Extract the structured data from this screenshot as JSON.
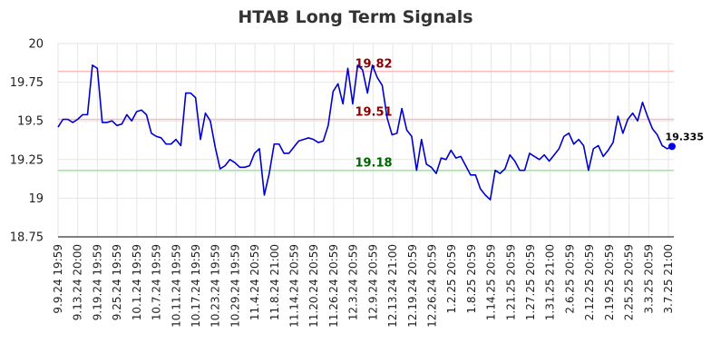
{
  "chart_data": {
    "type": "line",
    "title": "HTAB Long Term Signals",
    "ylim": [
      18.75,
      20
    ],
    "yticks": [
      18.75,
      19,
      19.25,
      19.5,
      19.75,
      20
    ],
    "ytick_labels": [
      "18.75",
      "19",
      "19.25",
      "19.5",
      "19.75",
      "20"
    ],
    "xtick_labels": [
      "9.9.24 19:59",
      "9.13.24 20:00",
      "9.19.24 19:59",
      "9.25.24 19:59",
      "10.1.24 19:59",
      "10.7.24 19:59",
      "10.11.24 19:59",
      "10.17.24 19:59",
      "10.23.24 19:59",
      "10.29.24 19:59",
      "11.4.24 20:59",
      "11.8.24 21:00",
      "11.14.24 20:59",
      "11.20.24 20:59",
      "11.26.24 20:59",
      "12.3.24 20:59",
      "12.9.24 20:59",
      "12.13.24 21:00",
      "12.19.24 20:59",
      "12.26.24 20:59",
      "1.2.25 20:59",
      "1.8.25 20:59",
      "1.14.25 20:59",
      "1.21.25 20:59",
      "1.27.25 20:59",
      "1.31.25 21:00",
      "2.6.25 20:59",
      "2.12.25 20:59",
      "2.19.25 20:59",
      "2.25.25 20:59",
      "3.3.25 20:59",
      "3.7.25 21:00"
    ],
    "grid": true,
    "line_color": "#0000cc",
    "series": [
      {
        "values": [
          19.46,
          19.51,
          19.51,
          19.49,
          19.51,
          19.54,
          19.54,
          19.86,
          19.84,
          19.49,
          19.49,
          19.5,
          19.47,
          19.48,
          19.54,
          19.5,
          19.56,
          19.57,
          19.54,
          19.42,
          19.4,
          19.39,
          19.35,
          19.35,
          19.38,
          19.34,
          19.68,
          19.68,
          19.65,
          19.38,
          19.55,
          19.5,
          19.33,
          19.19,
          19.21,
          19.25,
          19.23,
          19.2,
          19.2,
          19.21,
          19.29,
          19.32,
          19.02,
          19.16,
          19.35,
          19.35,
          19.29,
          19.29,
          19.33,
          19.37,
          19.38,
          19.39,
          19.38,
          19.36,
          19.37,
          19.47,
          19.69,
          19.74,
          19.61,
          19.84,
          19.61,
          19.86,
          19.83,
          19.68,
          19.86,
          19.78,
          19.73,
          19.52,
          19.41,
          19.42,
          19.58,
          19.44,
          19.4,
          19.18,
          19.38,
          19.22,
          19.2,
          19.16,
          19.26,
          19.25,
          19.31,
          19.26,
          19.27,
          19.21,
          19.15,
          19.15,
          19.06,
          19.02,
          18.99,
          19.18,
          19.16,
          19.19,
          19.28,
          19.24,
          19.18,
          19.18,
          19.29,
          19.27,
          19.25,
          19.28,
          19.24,
          19.28,
          19.32,
          19.4,
          19.42,
          19.35,
          19.38,
          19.34,
          19.18,
          19.32,
          19.34,
          19.27,
          19.31,
          19.36,
          19.53,
          19.42,
          19.51,
          19.55,
          19.5,
          19.62,
          19.53,
          19.45,
          19.41,
          19.34,
          19.32,
          19.335
        ]
      }
    ],
    "hlines": [
      {
        "value": 19.82,
        "label": "19.82",
        "line_color": "#ffbbbb",
        "label_color": "#8b0000"
      },
      {
        "value": 19.51,
        "label": "19.51",
        "line_color": "#ffbbbb",
        "label_color": "#8b0000"
      },
      {
        "value": 19.18,
        "label": "19.18",
        "line_color": "#90ee90",
        "label_color": "#006400"
      }
    ],
    "last_point": {
      "value": 19.335,
      "label": "19.335",
      "color": "#0000ee"
    }
  }
}
